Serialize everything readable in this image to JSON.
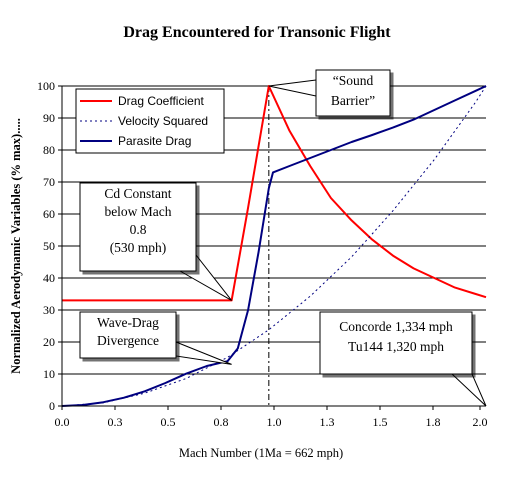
{
  "chart_data": {
    "type": "line",
    "title": "Drag Encountered for Transonic Flight",
    "xlabel": "Mach Number (1Ma = 662 mph)",
    "ylabel": "Normalized Aerodynamic Variables (% max).....",
    "xlim": [
      0,
      2.05
    ],
    "ylim": [
      0,
      100
    ],
    "x_ticks": [
      "0.0",
      "0.3",
      "0.5",
      "0.8",
      "1.0",
      "1.3",
      "1.5",
      "1.8",
      "2.0"
    ],
    "y_ticks": [
      "0",
      "10",
      "20",
      "30",
      "40",
      "50",
      "60",
      "70",
      "80",
      "90",
      "100"
    ],
    "grid": "horizontal",
    "legend_position": "top-left",
    "series": [
      {
        "name": "Drag Coefficient",
        "color": "#ff0000",
        "style": "solid",
        "x": [
          0,
          0.2,
          0.4,
          0.6,
          0.8,
          0.82,
          0.9,
          1.0,
          1.1,
          1.2,
          1.3,
          1.4,
          1.5,
          1.6,
          1.7,
          1.8,
          1.9,
          2.0,
          2.05
        ],
        "y": [
          33,
          33,
          33,
          33,
          33,
          33,
          62,
          100,
          86,
          75,
          65,
          58,
          52,
          47,
          43,
          40,
          37,
          35,
          34
        ]
      },
      {
        "name": "Velocity Squared",
        "color": "#000080",
        "style": "dotted",
        "x": [
          0,
          0.2,
          0.4,
          0.6,
          0.8,
          1.0,
          1.2,
          1.4,
          1.6,
          1.8,
          2.0,
          2.05
        ],
        "y": [
          0,
          1,
          4,
          8.6,
          15.2,
          23.8,
          34.3,
          46.6,
          61,
          77,
          95,
          100
        ]
      },
      {
        "name": "Parasite Drag",
        "color": "#000080",
        "style": "solid",
        "x": [
          0,
          0.1,
          0.2,
          0.3,
          0.4,
          0.5,
          0.6,
          0.7,
          0.8,
          0.85,
          0.9,
          0.95,
          1.0,
          1.02,
          1.1,
          1.2,
          1.3,
          1.4,
          1.5,
          1.6,
          1.7,
          1.8,
          1.9,
          2.0,
          2.05
        ],
        "y": [
          0,
          0.3,
          1.2,
          2.6,
          4.6,
          7.2,
          10.1,
          12.5,
          14,
          18,
          30,
          48,
          68,
          73,
          75,
          77.5,
          80,
          82.5,
          84.7,
          87,
          89.5,
          92.5,
          95.5,
          98.5,
          100
        ]
      }
    ],
    "reference_lines": [
      {
        "axis": "x",
        "value": 1.0,
        "style": "dash-dot",
        "color": "#000000"
      }
    ],
    "annotations": [
      {
        "id": "cd-constant",
        "lines": [
          "Cd Constant",
          "below Mach",
          "0.8",
          "(530 mph)"
        ],
        "points_to": [
          0.82,
          33
        ]
      },
      {
        "id": "sound-barrier",
        "lines": [
          "“Sound",
          "Barrier”"
        ],
        "points_to": [
          1.0,
          100
        ]
      },
      {
        "id": "wave-drag",
        "lines": [
          "Wave-Drag",
          "Divergence"
        ],
        "points_to": [
          0.82,
          13
        ]
      },
      {
        "id": "concorde",
        "lines": [
          "Concorde  1,334 mph",
          "Tu144  1,320 mph"
        ],
        "points_to": [
          2.05,
          0
        ]
      }
    ]
  }
}
